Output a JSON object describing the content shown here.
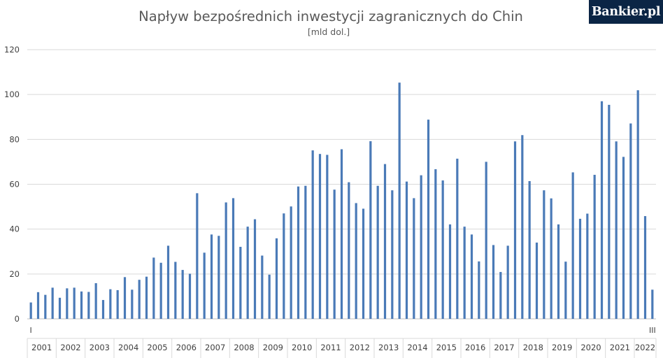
{
  "logo": "Bankier.pl",
  "chart_data": {
    "type": "bar",
    "title": "Napływ bezpośrednich inwestycji zagranicznych do Chin",
    "subtitle": "[mld dol.]",
    "xlabel": "",
    "ylabel": "",
    "ylim": [
      0,
      120
    ],
    "y_ticks": [
      0,
      20,
      40,
      60,
      80,
      100,
      120
    ],
    "grid": true,
    "legend": "none",
    "bar_color": "#4a7ab7",
    "years": [
      "2001",
      "2002",
      "2003",
      "2004",
      "2005",
      "2006",
      "2007",
      "2008",
      "2009",
      "2010",
      "2011",
      "2012",
      "2013",
      "2014",
      "2015",
      "2016",
      "2017",
      "2018",
      "2019",
      "2020",
      "2021",
      "2022"
    ],
    "quarter_labels": {
      "first": "I",
      "last": "III"
    },
    "values": [
      7.3,
      11.9,
      10.7,
      13.9,
      9.4,
      13.6,
      13.9,
      12.2,
      12.0,
      15.9,
      8.4,
      13.2,
      12.8,
      18.6,
      13.0,
      17.4,
      18.8,
      27.3,
      25.0,
      32.6,
      25.4,
      21.8,
      20.1,
      56.0,
      29.5,
      37.6,
      37.0,
      51.9,
      53.8,
      32.1,
      41.1,
      44.4,
      28.2,
      19.7,
      35.9,
      47.0,
      50.1,
      59.0,
      59.3,
      75.1,
      73.5,
      73.1,
      57.6,
      75.6,
      60.9,
      51.6,
      49.1,
      79.2,
      59.3,
      69.0,
      57.3,
      105.3,
      61.2,
      53.8,
      64.0,
      88.8,
      66.7,
      61.7,
      42.1,
      71.4,
      41.1,
      37.6,
      25.6,
      70.0,
      32.9,
      20.9,
      32.6,
      79.1,
      81.9,
      61.4,
      34.0,
      57.3,
      53.7,
      42.1,
      25.5,
      65.3,
      44.6,
      46.9,
      64.2,
      97.0,
      95.4,
      79.1,
      72.2,
      87.1,
      101.9,
      45.8,
      13.0
    ]
  }
}
